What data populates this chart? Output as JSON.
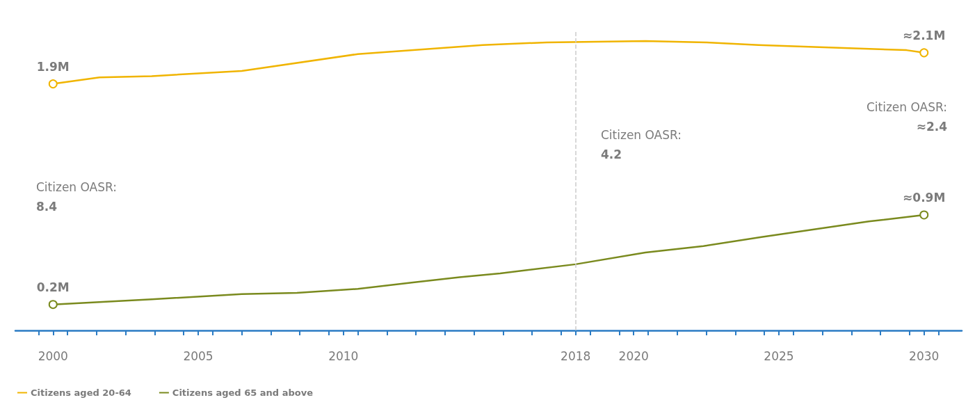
{
  "chart_data": {
    "type": "line",
    "xlim": [
      1998.7,
      2031.3
    ],
    "xticks": [
      {
        "value": 1999.5,
        "label": null
      },
      2000,
      {
        "value": 2000.5,
        "label": null
      },
      {
        "value": 2001.5,
        "label": null
      },
      {
        "value": 2002.5,
        "label": null
      },
      {
        "value": 2003.5,
        "label": null
      },
      {
        "value": 2004.5,
        "label": null
      },
      2005,
      {
        "value": 2005.5,
        "label": null
      },
      {
        "value": 2006.5,
        "label": null
      },
      {
        "value": 2007.5,
        "label": null
      },
      {
        "value": 2008.5,
        "label": null
      },
      {
        "value": 2009.5,
        "label": null
      },
      2010,
      {
        "value": 2010.5,
        "label": null
      },
      {
        "value": 2011.5,
        "label": null
      },
      {
        "value": 2012.5,
        "label": null
      },
      {
        "value": 2013.5,
        "label": null
      },
      {
        "value": 2014.5,
        "label": null
      },
      {
        "value": 2015.5,
        "label": null
      },
      {
        "value": 2016.5,
        "label": null
      },
      {
        "value": 2017.5,
        "label": null
      },
      2018,
      {
        "value": 2018.5,
        "label": null
      },
      {
        "value": 2019.5,
        "label": null
      },
      2020,
      {
        "value": 2020.5,
        "label": null
      },
      {
        "value": 2021.5,
        "label": null
      },
      {
        "value": 2022.5,
        "label": null
      },
      {
        "value": 2023.5,
        "label": null
      },
      {
        "value": 2024.5,
        "label": null
      },
      2025,
      {
        "value": 2025.5,
        "label": null
      },
      {
        "value": 2026.5,
        "label": null
      },
      {
        "value": 2027.5,
        "label": null
      },
      {
        "value": 2028.5,
        "label": null
      },
      {
        "value": 2029.5,
        "label": null
      },
      2030,
      {
        "value": 2030.5,
        "label": null
      }
    ],
    "ylim": [
      0,
      2.3
    ],
    "tick_labels": "x",
    "grid": false,
    "legend": "bottom left",
    "line_style": "solid",
    "series": [
      {
        "name": "Citizens aged 20-64",
        "color": "#f0b400",
        "x": [
          2000,
          2001.6,
          2003.4,
          2006.5,
          2010.5,
          2014.8,
          2017,
          2020.4,
          2022.5,
          2024.3,
          2029.4,
          2030
        ],
        "values": [
          1.9,
          1.95,
          1.96,
          2.0,
          2.13,
          2.2,
          2.22,
          2.23,
          2.22,
          2.2,
          2.16,
          2.14
        ],
        "value_labels": [
          "1.9M",
          null,
          null,
          null,
          null,
          null,
          null,
          null,
          null,
          null,
          null,
          "≈2.1M"
        ]
      },
      {
        "name": "Citizens aged 65 and above",
        "color": "#7a8a1e",
        "x": [
          2000,
          2003.4,
          2006.5,
          2008.4,
          2010.5,
          2012.4,
          2014.0,
          2015.4,
          2018,
          2020.4,
          2022.4,
          2024.4,
          2028.1,
          2030
        ],
        "values": [
          0.2,
          0.24,
          0.28,
          0.29,
          0.32,
          0.37,
          0.41,
          0.44,
          0.51,
          0.6,
          0.65,
          0.72,
          0.84,
          0.89
        ],
        "value_labels": [
          "0.2M",
          null,
          null,
          null,
          null,
          null,
          null,
          null,
          null,
          null,
          null,
          null,
          null,
          "≈0.9M"
        ]
      }
    ],
    "ref_lines": [
      {
        "axis": "x",
        "value": 2018,
        "label": null,
        "color": "#cccccc",
        "line_style": "dashed"
      }
    ],
    "annotations": [
      "Citizen OASR:\n8.4",
      "Citizen OASR:\n4.2",
      "Citizen OASR:\n≈2.4"
    ]
  }
}
